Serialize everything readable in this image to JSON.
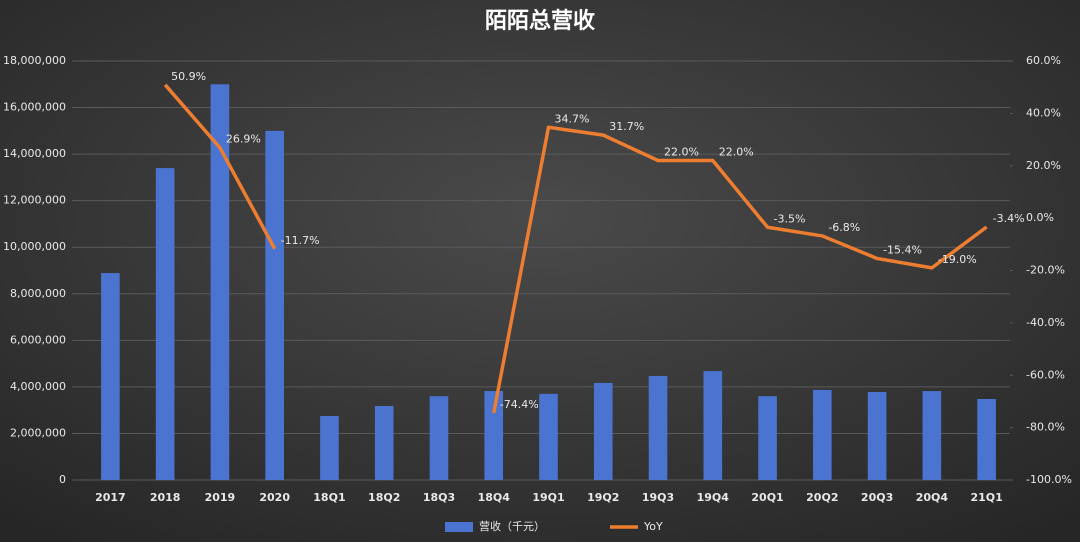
{
  "chart_data": {
    "type": "bar",
    "title": "陌陌总营收",
    "categories": [
      "2017",
      "2018",
      "2019",
      "2020",
      "18Q1",
      "18Q2",
      "18Q3",
      "18Q4",
      "19Q1",
      "19Q2",
      "19Q3",
      "19Q4",
      "20Q1",
      "20Q2",
      "20Q3",
      "20Q4",
      "21Q1"
    ],
    "series": [
      {
        "name": "营收（千元）",
        "type": "bar",
        "axis": "y",
        "color": "#4a74cf",
        "values": [
          8890000,
          13400000,
          17000000,
          15000000,
          2750000,
          3180000,
          3600000,
          3820000,
          3700000,
          4170000,
          4470000,
          4680000,
          3600000,
          3870000,
          3780000,
          3820000,
          3480000
        ]
      },
      {
        "name": "YoY",
        "type": "line",
        "axis": "y2",
        "color": "#ed7d31",
        "values": [
          null,
          50.9,
          26.9,
          -11.7,
          null,
          null,
          null,
          -74.4,
          34.7,
          31.7,
          22.0,
          22.0,
          -3.5,
          -6.8,
          -15.4,
          -19.0,
          -3.4
        ],
        "value_labels": [
          null,
          "50.9%",
          "26.9%",
          "-11.7%",
          null,
          null,
          null,
          "-74.4%",
          "34.7%",
          "31.7%",
          "22.0%",
          "22.0%",
          "-3.5%",
          "-6.8%",
          "-15.4%",
          "-19.0%",
          "-3.4%"
        ]
      }
    ],
    "ylim": [
      0,
      18000000
    ],
    "yticks": [
      0,
      {
        "value": 2000000,
        "label": "2,000,000"
      },
      {
        "value": 4000000,
        "label": "4,000,000"
      },
      {
        "value": 6000000,
        "label": "6,000,000"
      },
      {
        "value": 8000000,
        "label": "8,000,000"
      },
      {
        "value": 10000000,
        "label": "10,000,000"
      },
      {
        "value": 12000000,
        "label": "12,000,000"
      },
      {
        "value": 14000000,
        "label": "14,000,000"
      },
      {
        "value": 16000000,
        "label": "16,000,000"
      },
      {
        "value": 18000000,
        "label": "18,000,000"
      }
    ],
    "y2lim": [
      -100,
      60
    ],
    "y2ticks": [
      {
        "value": -100,
        "label": "-100.0%"
      },
      {
        "value": -80,
        "label": "-80.0%"
      },
      {
        "value": -60,
        "label": "-60.0%"
      },
      {
        "value": -40,
        "label": "-40.0%"
      },
      {
        "value": -20,
        "label": "-20.0%"
      },
      {
        "value": 0,
        "label": "0.0%"
      },
      {
        "value": 20,
        "label": "20.0%"
      },
      {
        "value": 40,
        "label": "40.0%"
      },
      {
        "value": 60,
        "label": "60.0%"
      }
    ],
    "grid": true,
    "legend": "bottom"
  }
}
